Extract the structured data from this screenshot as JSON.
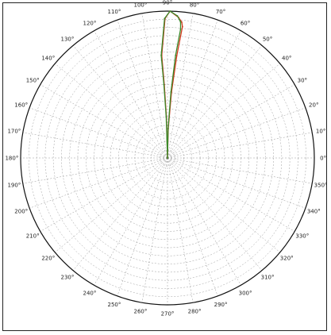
{
  "chart_data": {
    "type": "line",
    "projection": "polar",
    "angle_unit": "degrees",
    "angle_ticks": [
      "0°",
      "10°",
      "20°",
      "30°",
      "40°",
      "50°",
      "60°",
      "70°",
      "80°",
      "90°",
      "100°",
      "110°",
      "120°",
      "130°",
      "140°",
      "150°",
      "160°",
      "170°",
      "180°",
      "190°",
      "200°",
      "210°",
      "220°",
      "230°",
      "240°",
      "250°",
      "260°",
      "270°",
      "280°",
      "290°",
      "300°",
      "310°",
      "320°",
      "330°",
      "340°",
      "350°"
    ],
    "angle_values": [
      0,
      10,
      20,
      30,
      40,
      50,
      60,
      70,
      80,
      90,
      100,
      110,
      120,
      130,
      140,
      150,
      160,
      170,
      180,
      190,
      200,
      210,
      220,
      230,
      240,
      250,
      260,
      270,
      280,
      290,
      300,
      310,
      320,
      330,
      340,
      350
    ],
    "radial_range": [
      0,
      1
    ],
    "radial_gridline_count": 18,
    "grid": true,
    "grid_style": "dashed",
    "colors": {
      "series_a": "#3a8a2a",
      "series_b": "#d23a1e",
      "grid": "#9a9a9a",
      "outline": "#111111"
    },
    "series": [
      {
        "color": "#d23a1e",
        "points": [
          {
            "angle": 90,
            "r": 0.0
          },
          {
            "angle": 91.5,
            "r": 0.28
          },
          {
            "angle": 92.5,
            "r": 0.5
          },
          {
            "angle": 93.2,
            "r": 0.7
          },
          {
            "angle": 91.0,
            "r": 0.95
          },
          {
            "angle": 89.0,
            "r": 1.0
          },
          {
            "angle": 85.5,
            "r": 0.96
          },
          {
            "angle": 84.0,
            "r": 0.93
          },
          {
            "angle": 83.5,
            "r": 0.9
          },
          {
            "angle": 84.8,
            "r": 0.7
          },
          {
            "angle": 86.5,
            "r": 0.45
          },
          {
            "angle": 88.5,
            "r": 0.2
          },
          {
            "angle": 90,
            "r": 0.0
          }
        ]
      },
      {
        "color": "#3a8a2a",
        "points": [
          {
            "angle": 90,
            "r": 0.0
          },
          {
            "angle": 91.8,
            "r": 0.28
          },
          {
            "angle": 92.8,
            "r": 0.5
          },
          {
            "angle": 93.5,
            "r": 0.7
          },
          {
            "angle": 91.2,
            "r": 0.95
          },
          {
            "angle": 89.0,
            "r": 1.0
          },
          {
            "angle": 86.0,
            "r": 0.97
          },
          {
            "angle": 84.5,
            "r": 0.93
          },
          {
            "angle": 84.2,
            "r": 0.88
          },
          {
            "angle": 85.5,
            "r": 0.7
          },
          {
            "angle": 87.0,
            "r": 0.45
          },
          {
            "angle": 88.8,
            "r": 0.2
          },
          {
            "angle": 90,
            "r": 0.0
          }
        ]
      }
    ]
  }
}
